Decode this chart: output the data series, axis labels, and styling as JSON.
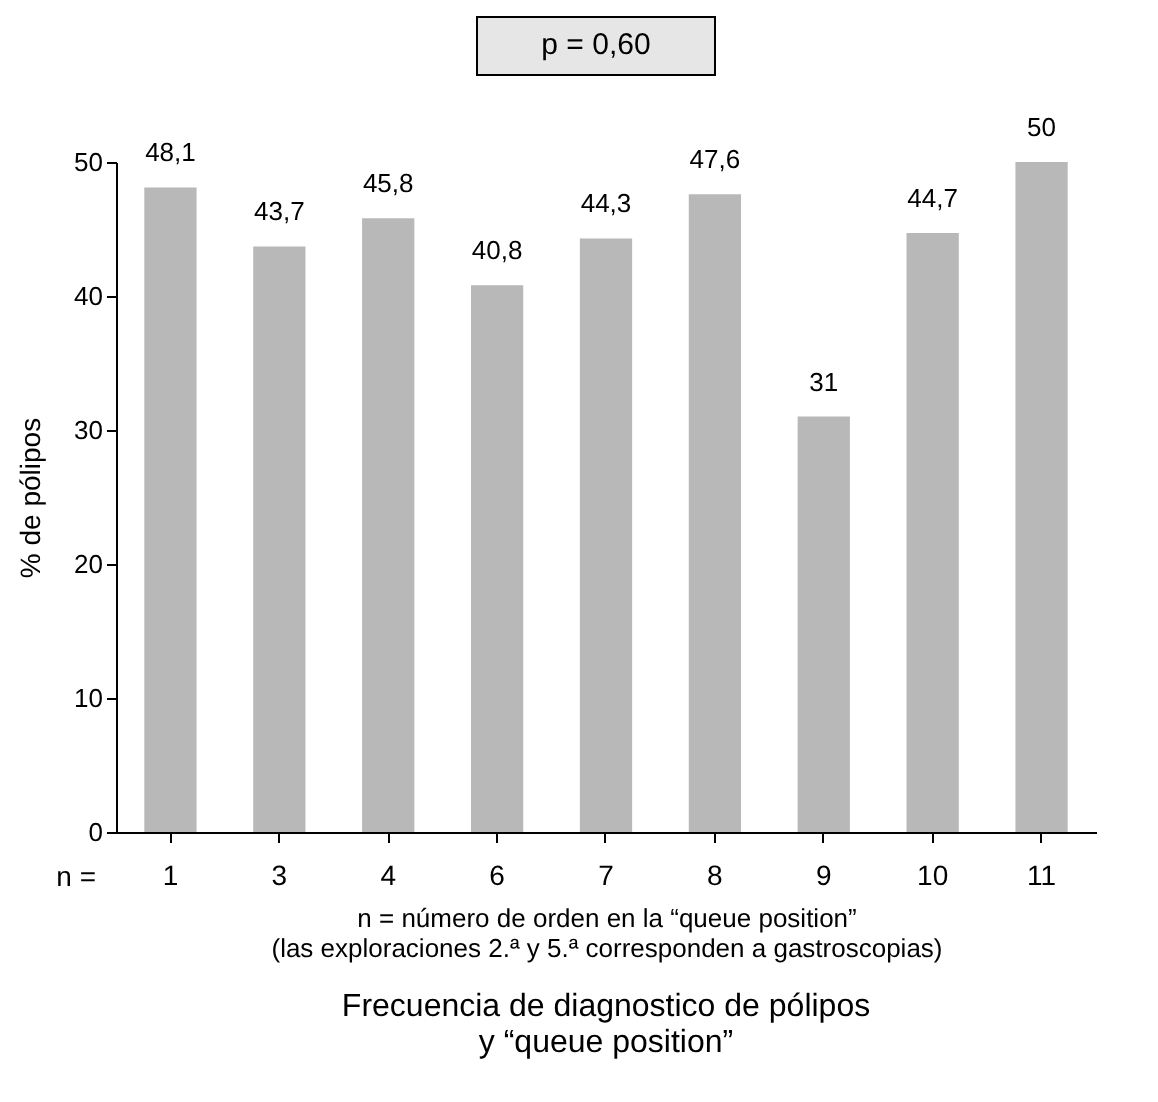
{
  "chart_data": {
    "type": "bar",
    "title": "Frecuencia de diagnostico de pólipos\ny “queue position”",
    "xlabel": "n = número de orden en la “queue position”\n(las exploraciones 2.ª y 5.ª corresponden a gastroscopias)",
    "ylabel": "% de pólipos",
    "annotations": [
      "p = 0,60",
      "n ="
    ],
    "categories": [
      "1",
      "3",
      "4",
      "6",
      "7",
      "8",
      "9",
      "10",
      "11"
    ],
    "values": [
      48.1,
      43.7,
      45.8,
      40.8,
      44.3,
      47.6,
      31,
      44.7,
      50
    ],
    "value_labels": [
      "48,1",
      "43,7",
      "45,8",
      "40,8",
      "44,3",
      "47,6",
      "31",
      "44,7",
      "50"
    ],
    "color": "#b8b8b8",
    "ylim": [
      0,
      50
    ],
    "yticks": [
      0,
      10,
      20,
      30,
      40,
      50
    ],
    "grid": false
  }
}
